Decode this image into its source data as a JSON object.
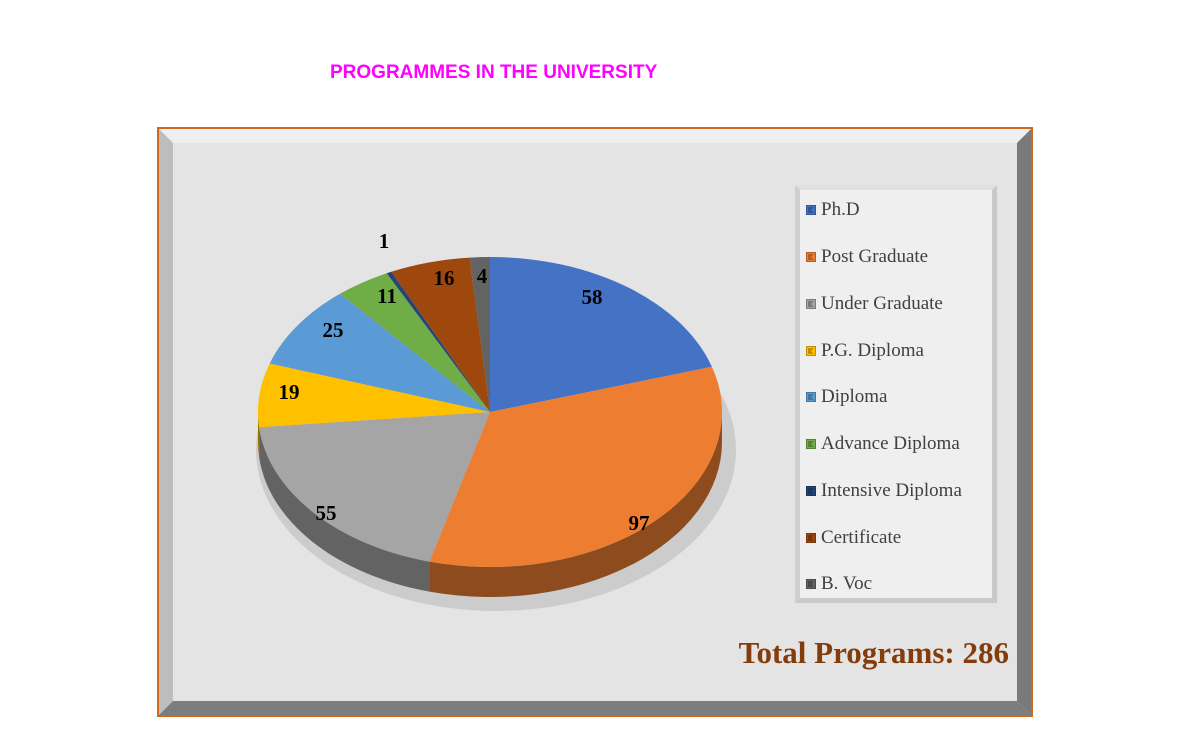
{
  "page": {
    "title": "PROGRAMMES IN THE UNIVERSITY",
    "total_label": "Total Programs:  286"
  },
  "chart_data": {
    "type": "pie",
    "variant": "3d",
    "title": "PROGRAMMES IN THE UNIVERSITY",
    "categories": [
      "Ph.D",
      "Post Graduate",
      "Under Graduate",
      "P.G. Diploma",
      "Diploma",
      "Advance Diploma",
      "Intensive Diploma",
      "Certificate",
      "B. Voc"
    ],
    "values": [
      58,
      97,
      55,
      19,
      25,
      11,
      1,
      16,
      4
    ],
    "colors": [
      "#4472c4",
      "#ed7d31",
      "#a5a5a5",
      "#ffc000",
      "#5b9bd5",
      "#70ad47",
      "#264478",
      "#9e480e",
      "#636363"
    ],
    "data_labels": [
      "58",
      "97",
      "55",
      "19",
      "25",
      "11",
      "1",
      "16",
      "4"
    ],
    "total": 286,
    "start_angle": "12 o'clock",
    "direction": "clockwise",
    "legend_position": "right",
    "annotation": "Total Programs:  286"
  },
  "legend": {
    "items": [
      {
        "label": "Ph.D",
        "color": "#4472c4"
      },
      {
        "label": "Post Graduate",
        "color": "#ed7d31"
      },
      {
        "label": "Under Graduate",
        "color": "#a5a5a5"
      },
      {
        "label": "P.G. Diploma",
        "color": "#ffc000"
      },
      {
        "label": "Diploma",
        "color": "#5b9bd5"
      },
      {
        "label": "Advance Diploma",
        "color": "#70ad47"
      },
      {
        "label": "Intensive Diploma",
        "color": "#264478"
      },
      {
        "label": "Certificate",
        "color": "#9e480e"
      },
      {
        "label": "B. Voc",
        "color": "#636363"
      }
    ]
  },
  "colors": {
    "title": "#ff00ff",
    "frame_border": "#d0691f",
    "total_text": "#843c0c"
  }
}
